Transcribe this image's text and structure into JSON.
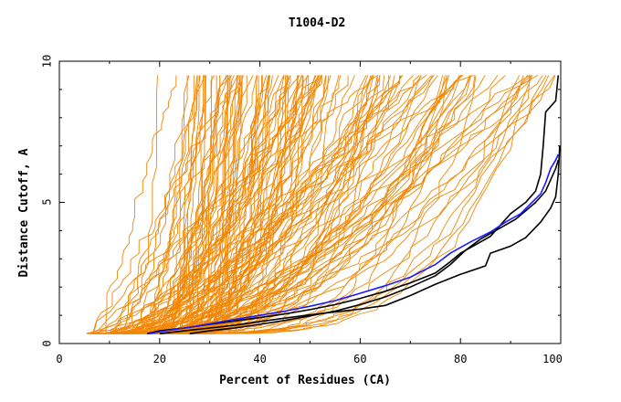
{
  "chart_data": {
    "type": "line",
    "title": "T1004-D2",
    "xlabel": "Percent of Residues (CA)",
    "ylabel": "Distance Cutoff, A",
    "xlim": [
      0,
      100
    ],
    "ylim": [
      0,
      10
    ],
    "x_ticks": [
      0,
      20,
      40,
      60,
      80,
      100
    ],
    "y_ticks": [
      0,
      5,
      10
    ],
    "colors": {
      "background_series": "#f28705",
      "highlight_blue": "#1a1aff",
      "highlight_black": "#000000",
      "axes": "#000000"
    },
    "background_series_count": 150,
    "series": [
      {
        "name": "black-1",
        "color": "#000000",
        "points": [
          [
            17.5,
            0.35
          ],
          [
            20,
            0.45
          ],
          [
            25,
            0.55
          ],
          [
            30,
            0.68
          ],
          [
            35,
            0.8
          ],
          [
            40,
            0.92
          ],
          [
            45,
            1.05
          ],
          [
            50,
            1.2
          ],
          [
            55,
            1.38
          ],
          [
            60,
            1.6
          ],
          [
            65,
            1.85
          ],
          [
            70,
            2.15
          ],
          [
            75,
            2.5
          ],
          [
            78,
            2.9
          ],
          [
            80,
            3.2
          ],
          [
            83,
            3.5
          ],
          [
            86,
            3.8
          ],
          [
            88,
            4.2
          ],
          [
            90,
            4.6
          ],
          [
            93,
            5.0
          ],
          [
            95,
            5.4
          ],
          [
            96,
            6.0
          ],
          [
            96.5,
            7.0
          ],
          [
            97,
            8.2
          ],
          [
            99,
            8.6
          ],
          [
            99.5,
            9.5
          ]
        ]
      },
      {
        "name": "black-2",
        "color": "#000000",
        "points": [
          [
            20,
            0.35
          ],
          [
            25,
            0.45
          ],
          [
            30,
            0.55
          ],
          [
            35,
            0.65
          ],
          [
            40,
            0.78
          ],
          [
            45,
            0.9
          ],
          [
            50,
            1.02
          ],
          [
            55,
            1.12
          ],
          [
            60,
            1.22
          ],
          [
            65,
            1.35
          ],
          [
            70,
            1.7
          ],
          [
            75,
            2.1
          ],
          [
            80,
            2.45
          ],
          [
            85,
            2.75
          ],
          [
            86,
            3.2
          ],
          [
            90,
            3.45
          ],
          [
            93,
            3.75
          ],
          [
            96,
            4.3
          ],
          [
            98,
            4.8
          ],
          [
            99,
            5.2
          ],
          [
            99.5,
            6.0
          ],
          [
            99.8,
            7.0
          ]
        ]
      },
      {
        "name": "black-3",
        "color": "#000000",
        "points": [
          [
            26,
            0.35
          ],
          [
            30,
            0.45
          ],
          [
            35,
            0.55
          ],
          [
            40,
            0.68
          ],
          [
            45,
            0.82
          ],
          [
            50,
            0.98
          ],
          [
            55,
            1.15
          ],
          [
            60,
            1.38
          ],
          [
            65,
            1.65
          ],
          [
            70,
            2.0
          ],
          [
            75,
            2.4
          ],
          [
            78,
            2.8
          ],
          [
            81,
            3.3
          ],
          [
            84,
            3.7
          ],
          [
            88,
            4.1
          ],
          [
            91,
            4.4
          ],
          [
            93,
            4.7
          ],
          [
            95,
            5.0
          ],
          [
            97,
            5.4
          ],
          [
            99,
            6.2
          ],
          [
            99.5,
            6.5
          ]
        ]
      },
      {
        "name": "blue-1",
        "color": "#1a1aff",
        "points": [
          [
            18,
            0.35
          ],
          [
            20,
            0.42
          ],
          [
            25,
            0.55
          ],
          [
            30,
            0.7
          ],
          [
            35,
            0.85
          ],
          [
            40,
            1.0
          ],
          [
            45,
            1.15
          ],
          [
            50,
            1.32
          ],
          [
            55,
            1.52
          ],
          [
            60,
            1.78
          ],
          [
            65,
            2.05
          ],
          [
            70,
            2.35
          ],
          [
            75,
            2.8
          ],
          [
            78,
            3.2
          ],
          [
            82,
            3.6
          ],
          [
            86,
            3.95
          ],
          [
            89,
            4.3
          ],
          [
            92,
            4.6
          ],
          [
            94,
            4.95
          ],
          [
            96,
            5.3
          ],
          [
            97,
            5.7
          ],
          [
            98,
            6.2
          ],
          [
            99,
            6.5
          ],
          [
            99.5,
            6.7
          ]
        ]
      }
    ]
  }
}
